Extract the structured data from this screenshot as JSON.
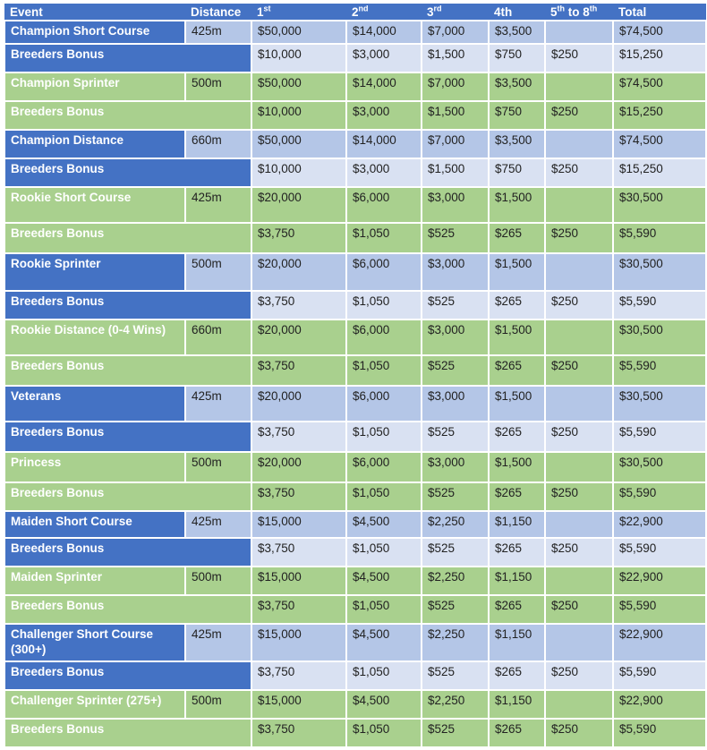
{
  "colors": {
    "header": "#4472c4",
    "blue_row": "#b4c6e7",
    "blue_bonus": "#d9e1f2",
    "green_row": "#a9d08e"
  },
  "headers": {
    "event": "Event",
    "distance": "Distance",
    "first": "1",
    "first_sup": "st",
    "second": "2",
    "second_sup": "nd",
    "third": "3",
    "third_sup": "rd",
    "fourth": "4th",
    "fifth_a": "5",
    "fifth_sup_a": "th",
    "fifth_mid": " to 8",
    "fifth_sup_b": "th",
    "total": "Total"
  },
  "rows": [
    {
      "event": "Champion Short Course",
      "distance": "425m",
      "color": "blue",
      "h": 26,
      "p1": "$50,000",
      "p2": "$14,000",
      "p3": "$7,000",
      "p4": "$3,500",
      "p5": "",
      "total": "$74,500"
    },
    {
      "event": "Breeders Bonus",
      "bonus": true,
      "color": "blue",
      "h": 32,
      "p1": "$10,000",
      "p2": "$3,000",
      "p3": "$1,500",
      "p4": "$750",
      "p5": "$250",
      "total": "$15,250"
    },
    {
      "event": "Champion Sprinter",
      "distance": "500m",
      "color": "green",
      "h": 32,
      "p1": "$50,000",
      "p2": "$14,000",
      "p3": "$7,000",
      "p4": "$3,500",
      "p5": "",
      "total": "$74,500"
    },
    {
      "event": "Breeders Bonus",
      "bonus": true,
      "color": "green",
      "h": 32,
      "p1": "$10,000",
      "p2": "$3,000",
      "p3": "$1,500",
      "p4": "$750",
      "p5": "$250",
      "total": "$15,250"
    },
    {
      "event": "Champion Distance",
      "distance": "660m",
      "color": "blue",
      "h": 32,
      "p1": "$50,000",
      "p2": "$14,000",
      "p3": "$7,000",
      "p4": "$3,500",
      "p5": "",
      "total": "$74,500"
    },
    {
      "event": "Breeders Bonus",
      "bonus": true,
      "color": "blue",
      "h": 32,
      "p1": "$10,000",
      "p2": "$3,000",
      "p3": "$1,500",
      "p4": "$750",
      "p5": "$250",
      "total": "$15,250"
    },
    {
      "event": "Rookie Short Course",
      "distance": "425m",
      "color": "green",
      "h": 40,
      "p1": "$20,000",
      "p2": "$6,000",
      "p3": "$3,000",
      "p4": "$1,500",
      "p5": "",
      "total": "$30,500"
    },
    {
      "event": "Breeders Bonus",
      "bonus": true,
      "color": "green",
      "h": 34,
      "p1": "$3,750",
      "p2": "$1,050",
      "p3": "$525",
      "p4": "$265",
      "p5": "$250",
      "total": "$5,590"
    },
    {
      "event": "Rookie Sprinter",
      "distance": "500m",
      "color": "blue",
      "h": 42,
      "p1": "$20,000",
      "p2": "$6,000",
      "p3": "$3,000",
      "p4": "$1,500",
      "p5": "",
      "total": "$30,500"
    },
    {
      "event": "Breeders Bonus",
      "bonus": true,
      "color": "blue",
      "h": 32,
      "p1": "$3,750",
      "p2": "$1,050",
      "p3": "$525",
      "p4": "$265",
      "p5": "$250",
      "total": "$5,590"
    },
    {
      "event": "Rookie Distance (0-4 Wins)",
      "distance": "660m",
      "color": "green",
      "h": 40,
      "p1": "$20,000",
      "p2": "$6,000",
      "p3": "$3,000",
      "p4": "$1,500",
      "p5": "",
      "total": "$30,500"
    },
    {
      "event": "Breeders Bonus",
      "bonus": true,
      "color": "green",
      "h": 34,
      "p1": "$3,750",
      "p2": "$1,050",
      "p3": "$525",
      "p4": "$265",
      "p5": "$250",
      "total": "$5,590"
    },
    {
      "event": "Veterans",
      "distance": "425m",
      "color": "blue",
      "h": 40,
      "p1": "$20,000",
      "p2": "$6,000",
      "p3": "$3,000",
      "p4": "$1,500",
      "p5": "",
      "total": "$30,500"
    },
    {
      "event": "Breeders Bonus",
      "bonus": true,
      "color": "blue",
      "h": 34,
      "p1": "$3,750",
      "p2": "$1,050",
      "p3": "$525",
      "p4": "$265",
      "p5": "$250",
      "total": "$5,590"
    },
    {
      "event": "Princess",
      "distance": "500m",
      "color": "green",
      "h": 34,
      "p1": "$20,000",
      "p2": "$6,000",
      "p3": "$3,000",
      "p4": "$1,500",
      "p5": "",
      "total": "$30,500"
    },
    {
      "event": "Breeders Bonus",
      "bonus": true,
      "color": "green",
      "h": 32,
      "p1": "$3,750",
      "p2": "$1,050",
      "p3": "$525",
      "p4": "$265",
      "p5": "$250",
      "total": "$5,590"
    },
    {
      "event": "Maiden Short Course",
      "distance": "425m",
      "color": "blue",
      "h": 30,
      "p1": "$15,000",
      "p2": "$4,500",
      "p3": "$2,250",
      "p4": "$1,150",
      "p5": "",
      "total": "$22,900"
    },
    {
      "event": "Breeders Bonus",
      "bonus": true,
      "color": "blue",
      "h": 32,
      "p1": "$3,750",
      "p2": "$1,050",
      "p3": "$525",
      "p4": "$265",
      "p5": "$250",
      "total": "$5,590"
    },
    {
      "event": "Maiden Sprinter",
      "distance": "500m",
      "color": "green",
      "h": 32,
      "p1": "$15,000",
      "p2": "$4,500",
      "p3": "$2,250",
      "p4": "$1,150",
      "p5": "",
      "total": "$22,900"
    },
    {
      "event": "Breeders Bonus",
      "bonus": true,
      "color": "green",
      "h": 32,
      "p1": "$3,750",
      "p2": "$1,050",
      "p3": "$525",
      "p4": "$265",
      "p5": "$250",
      "total": "$5,590"
    },
    {
      "event": "Challenger Short Course (300+)",
      "distance": "425m",
      "color": "blue",
      "h": 42,
      "p1": "$15,000",
      "p2": "$4,500",
      "p3": "$2,250",
      "p4": "$1,150",
      "p5": "",
      "total": "$22,900"
    },
    {
      "event": "Breeders Bonus",
      "bonus": true,
      "color": "blue",
      "h": 32,
      "p1": "$3,750",
      "p2": "$1,050",
      "p3": "$525",
      "p4": "$265",
      "p5": "$250",
      "total": "$5,590"
    },
    {
      "event": "Challenger Sprinter (275+)",
      "distance": "500m",
      "color": "green",
      "h": 32,
      "p1": "$15,000",
      "p2": "$4,500",
      "p3": "$2,250",
      "p4": "$1,150",
      "p5": "",
      "total": "$22,900"
    },
    {
      "event": "Breeders Bonus",
      "bonus": true,
      "color": "green",
      "h": 32,
      "p1": "$3,750",
      "p2": "$1,050",
      "p3": "$525",
      "p4": "$265",
      "p5": "$250",
      "total": "$5,590"
    }
  ]
}
